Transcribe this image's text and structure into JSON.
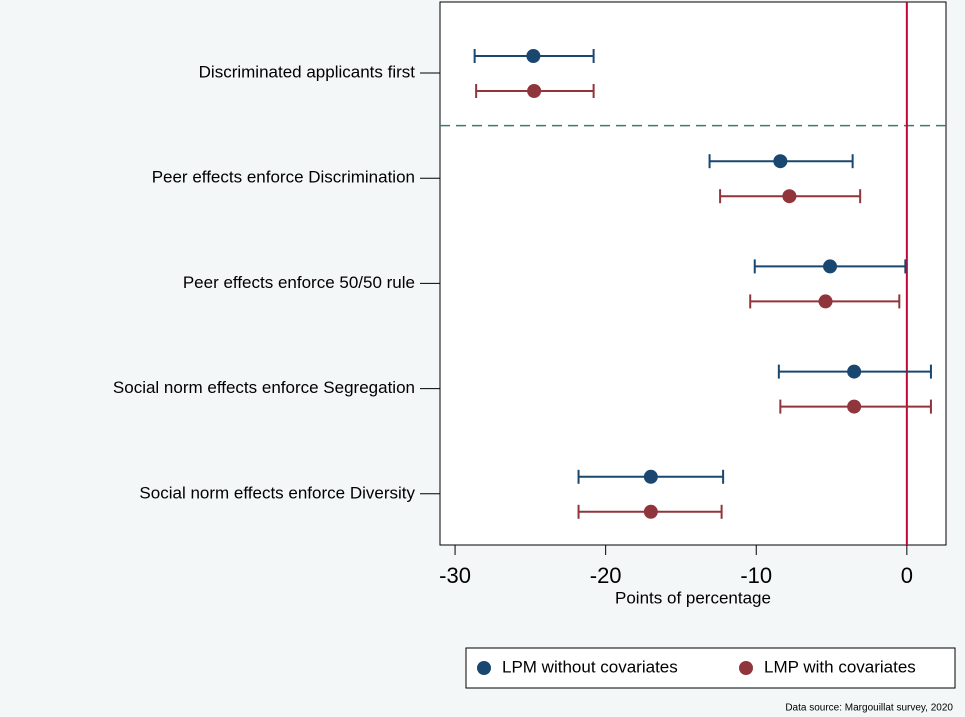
{
  "chart_data": {
    "type": "coefplot",
    "x_label": "Points of percentage",
    "source": "Data source: Margouillat survey, 2020",
    "categories": [
      "Discriminated applicants first",
      "Peer effects enforce Discrimination",
      "Peer effects enforce 50/50 rule",
      "Social norm effects enforce Segregation",
      "Social norm effects enforce Diversity"
    ],
    "series": [
      {
        "name": "LPM without covariates",
        "color": "#1a476f",
        "values": [
          -24.8,
          -8.4,
          -5.1,
          -3.5,
          -17.0
        ],
        "lower": [
          -28.7,
          -13.1,
          -10.1,
          -8.5,
          -21.8
        ],
        "upper": [
          -20.8,
          -3.6,
          -0.1,
          1.6,
          -12.2
        ]
      },
      {
        "name": "LMP with covariates",
        "color": "#90353b",
        "values": [
          -24.75,
          -7.8,
          -5.4,
          -3.5,
          -17.0
        ],
        "lower": [
          -28.6,
          -12.4,
          -10.4,
          -8.4,
          -21.8
        ],
        "upper": [
          -20.8,
          -3.1,
          -0.5,
          1.6,
          -12.3
        ]
      }
    ],
    "xlim": [
      -31.0,
      2.6
    ],
    "xticks": [
      -30,
      -20,
      -10,
      0
    ],
    "reference_line": 0,
    "reference_color": "#c10534",
    "legend": "bottom-right"
  }
}
